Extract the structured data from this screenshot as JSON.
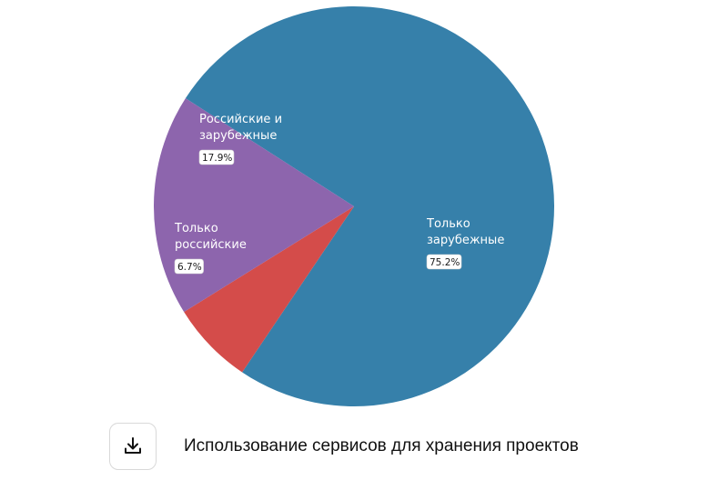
{
  "chart_data": {
    "type": "pie",
    "slices": [
      {
        "label": "Только зарубежные",
        "label_lines": [
          "Только",
          "зарубежные"
        ],
        "value": 75.2,
        "display": "75.2%",
        "color": "#3680aa"
      },
      {
        "label": "Только российские",
        "label_lines": [
          "Только",
          "российские"
        ],
        "value": 6.7,
        "display": "6.7%",
        "color": "#d44c4a"
      },
      {
        "label": "Российские и зарубежные",
        "label_lines": [
          "Российские и",
          "зарубежные"
        ],
        "value": 17.9,
        "display": "17.9%",
        "color": "#8d65ad"
      }
    ]
  },
  "footer": {
    "caption": "Использование сервисов для хранения проектов",
    "download_icon": "download-icon"
  }
}
